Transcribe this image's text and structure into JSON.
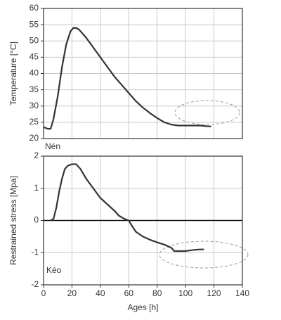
{
  "chart_data": [
    {
      "type": "line",
      "ylabel": "Temperature [°C]",
      "annotation": "Nén",
      "x": [
        0,
        3,
        5,
        7,
        10,
        13,
        16,
        19,
        21,
        23,
        25,
        30,
        35,
        40,
        45,
        50,
        55,
        60,
        65,
        70,
        75,
        80,
        85,
        90,
        95,
        100,
        105,
        110,
        115,
        118
      ],
      "values": [
        23.5,
        23,
        23,
        26,
        33,
        42,
        49,
        53,
        54,
        54,
        53.5,
        51,
        48,
        45,
        42,
        39,
        36.5,
        34,
        31.5,
        29.5,
        27.8,
        26.3,
        25,
        24.3,
        24,
        24,
        24,
        24,
        23.8,
        23.7
      ],
      "color": "#333333",
      "xlim": [
        0,
        140
      ],
      "xticks": [
        0,
        20,
        40,
        60,
        80,
        100,
        120,
        140
      ],
      "ylim": [
        20,
        60
      ],
      "yticks": [
        20,
        25,
        30,
        35,
        40,
        45,
        50,
        55,
        60
      ],
      "grid": true
    },
    {
      "type": "line",
      "ylabel": "Restrained stress [Mpa]",
      "xlabel": "Ages [h]",
      "annotation": "Kéo",
      "x": [
        5,
        7,
        9,
        11,
        13,
        15,
        17,
        20,
        23,
        26,
        30,
        35,
        40,
        45,
        50,
        53,
        57,
        60,
        62,
        65,
        70,
        75,
        80,
        85,
        90,
        92,
        95,
        100,
        105,
        110,
        113
      ],
      "values": [
        0,
        0.05,
        0.4,
        0.9,
        1.3,
        1.6,
        1.7,
        1.75,
        1.75,
        1.6,
        1.3,
        1,
        0.7,
        0.5,
        0.3,
        0.15,
        0.05,
        0,
        -0.15,
        -0.35,
        -0.5,
        -0.6,
        -0.68,
        -0.75,
        -0.85,
        -0.95,
        -0.95,
        -0.95,
        -0.92,
        -0.9,
        -0.9
      ],
      "color": "#333333",
      "xlim": [
        0,
        140
      ],
      "xticks": [
        0,
        20,
        40,
        60,
        80,
        100,
        120,
        140
      ],
      "ylim": [
        -2,
        2
      ],
      "yticks": [
        -2,
        -1,
        0,
        1,
        2
      ],
      "grid": true
    }
  ]
}
